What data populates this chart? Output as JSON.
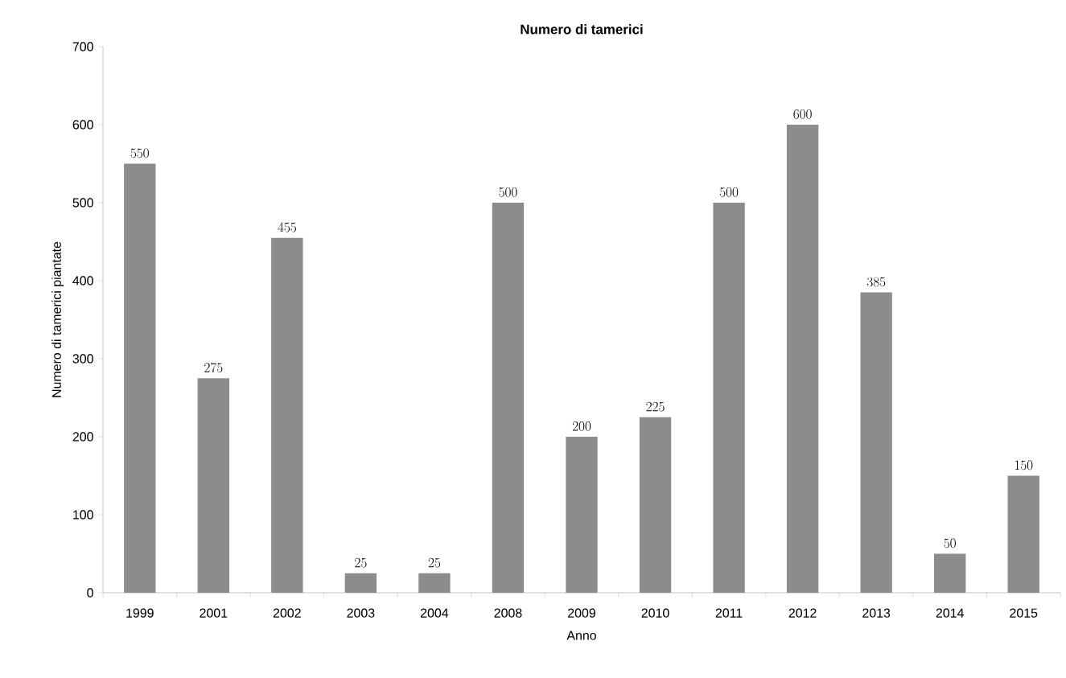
{
  "chart_data": {
    "type": "bar",
    "title": "Numero di tamerici",
    "xlabel": "Anno",
    "ylabel": "Numero di tamerici piantate",
    "categories": [
      "1999",
      "2001",
      "2002",
      "2003",
      "2004",
      "2008",
      "2009",
      "2010",
      "2011",
      "2012",
      "2013",
      "2014",
      "2015"
    ],
    "values": [
      550,
      275,
      455,
      25,
      25,
      500,
      200,
      225,
      500,
      600,
      385,
      50,
      150
    ],
    "color": "#8c8c8c",
    "ylim": [
      0,
      700
    ],
    "yticks": [
      0,
      100,
      200,
      300,
      400,
      500,
      600,
      700
    ],
    "data_labels": true
  }
}
